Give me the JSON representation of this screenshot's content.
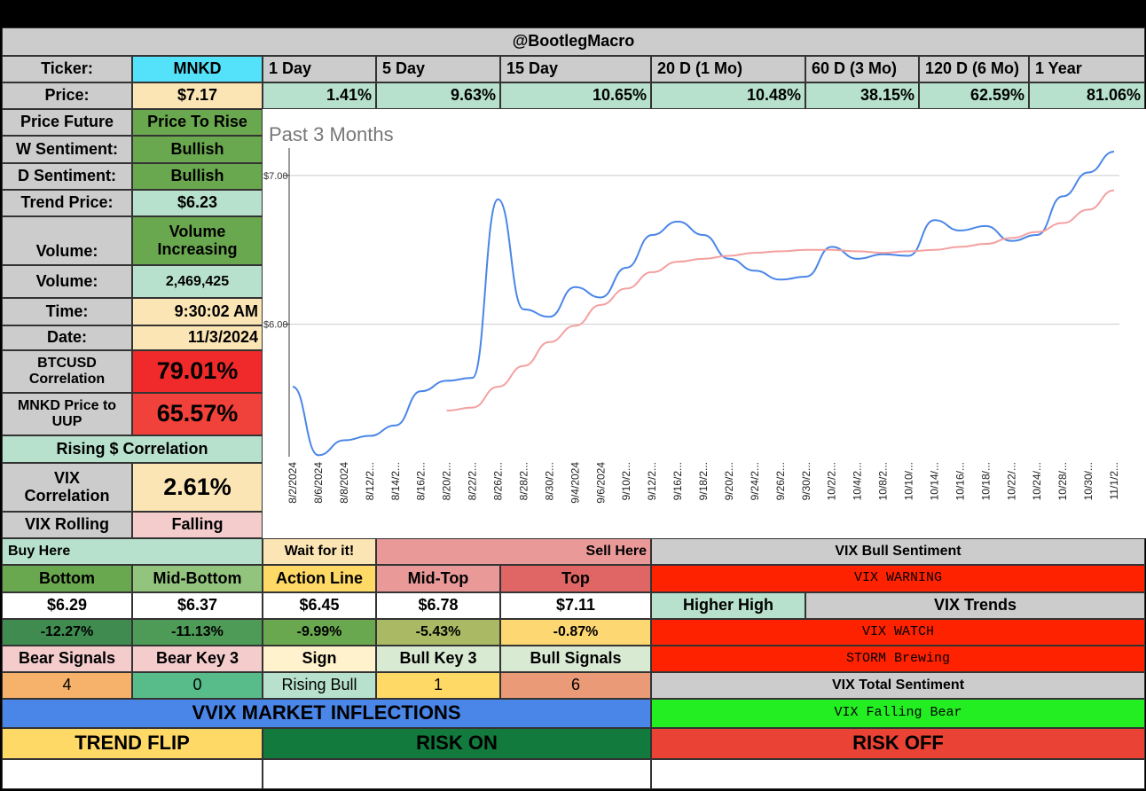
{
  "header": {
    "title": "@BootlegMacro"
  },
  "ticker": {
    "label": "Ticker:",
    "value": "MNKD"
  },
  "periods": {
    "labels": [
      "1 Day",
      "5 Day",
      "15 Day",
      "20 D (1 Mo)",
      "60 D (3 Mo)",
      "120 D (6 Mo)",
      "1 Year"
    ],
    "values": [
      "1.41%",
      "9.63%",
      "10.65%",
      "10.48%",
      "38.15%",
      "62.59%",
      "81.06%"
    ]
  },
  "price": {
    "label": "Price:",
    "value": "$7.17"
  },
  "left_panel": {
    "price_future_label": "Price Future",
    "price_future_value": "Price To Rise",
    "w_sentiment_label": "W Sentiment:",
    "w_sentiment_value": "Bullish",
    "d_sentiment_label": "D Sentiment:",
    "d_sentiment_value": "Bullish",
    "trend_price_label": "Trend Price:",
    "trend_price_value": "$6.23",
    "volume_trend_label": "Volume:",
    "volume_trend_value": "Volume Increasing",
    "volume_label": "Volume:",
    "volume_value": "2,469,425",
    "time_label": "Time:",
    "time_value": "9:30:02 AM",
    "date_label": "Date:",
    "date_value": "11/3/2024",
    "btc_corr_label": "BTCUSD Correlation",
    "btc_corr_value": "79.01%",
    "uup_corr_label": "MNKD Price to UUP",
    "uup_corr_value": "65.57%",
    "rising_corr": "Rising $ Correlation",
    "vix_corr_label": "VIX Correlation",
    "vix_corr_value": "2.61%",
    "vix_rolling_label": "VIX Rolling",
    "vix_rolling_value": "Falling"
  },
  "chart_data": {
    "type": "line",
    "title": "Past 3 Months",
    "y_tick_labels": [
      "$7.00",
      "$6.00"
    ],
    "y_ticks": [
      7,
      6
    ],
    "ylim": [
      5.11,
      7.16
    ],
    "x": [
      "8/2/2024",
      "8/6/2024",
      "8/8/2024",
      "8/12/2...",
      "8/14/2...",
      "8/16/2...",
      "8/20/2...",
      "8/22/2...",
      "8/26/2...",
      "8/28/2...",
      "8/30/2...",
      "9/4/2024",
      "9/6/2024",
      "9/10/2...",
      "9/12/2...",
      "9/16/2...",
      "9/18/2...",
      "9/20/2...",
      "9/24/2...",
      "9/26/2...",
      "9/30/2...",
      "10/2/2...",
      "10/4/2...",
      "10/8/2...",
      "10/10/...",
      "10/14/...",
      "10/16/...",
      "10/18/...",
      "10/22/...",
      "10/24/...",
      "10/28/...",
      "10/30/...",
      "11/1/2..."
    ],
    "series": [
      {
        "color": "#4a86e8",
        "values": [
          5.58,
          5.12,
          5.22,
          5.25,
          5.32,
          5.55,
          5.62,
          5.64,
          6.84,
          6.1,
          6.05,
          6.25,
          6.18,
          6.38,
          6.6,
          6.69,
          6.6,
          6.44,
          6.36,
          6.3,
          6.32,
          6.52,
          6.44,
          6.47,
          6.46,
          6.7,
          6.63,
          6.66,
          6.56,
          6.6,
          6.86,
          7.02,
          7.16
        ]
      },
      {
        "color": "#f4a0a0",
        "values": [
          null,
          null,
          null,
          null,
          null,
          null,
          5.42,
          5.44,
          5.58,
          5.72,
          5.88,
          5.99,
          6.13,
          6.24,
          6.35,
          6.42,
          6.44,
          6.46,
          6.48,
          6.49,
          6.5,
          6.5,
          6.49,
          6.48,
          6.49,
          6.5,
          6.52,
          6.54,
          6.58,
          6.62,
          6.68,
          6.77,
          6.9
        ]
      }
    ]
  },
  "levels": {
    "buy_here": "Buy Here",
    "wait": "Wait for it!",
    "sell_here": "Sell Here",
    "names": [
      "Bottom",
      "Mid-Bottom",
      "Action Line",
      "Mid-Top",
      "Top"
    ],
    "prices": [
      "$6.29",
      "$6.37",
      "$6.45",
      "$6.78",
      "$7.11"
    ],
    "pcts": [
      "-12.27%",
      "-11.13%",
      "-9.99%",
      "-5.43%",
      "-0.87%"
    ]
  },
  "signals": {
    "names": [
      "Bear Signals",
      "Bear Key 3",
      "Sign",
      "Bull Key 3",
      "Bull Signals"
    ],
    "values": [
      "4",
      "0",
      "Rising Bull",
      "1",
      "6"
    ]
  },
  "vix": {
    "bull_sentiment": "VIX Bull Sentiment",
    "warning": "VIX WARNING",
    "higher_high": "Higher High",
    "trends": "VIX Trends",
    "watch": "VIX WATCH",
    "storm": "STORM Brewing",
    "total_sentiment": "VIX Total Sentiment",
    "falling_bear": "VIX Falling Bear"
  },
  "bottom": {
    "vvix": "VVIX MARKET INFLECTIONS",
    "trend_flip": "TREND FLIP",
    "risk_on": "RISK ON",
    "risk_off": "RISK OFF"
  },
  "colors": {
    "grey": "#cccccc",
    "cyan": "#54e1fa",
    "cream": "#fce5b4",
    "light_green": "#b7e1cd",
    "green": "#6aa84f",
    "dark_green": "#3f8b50",
    "red": "#f02a2a",
    "pink": "#f4cccc",
    "salmon": "#ea9999",
    "dark_salmon": "#e06666",
    "yellow": "#ffd966",
    "blue": "#4a86e8",
    "bright_green": "#22ee22",
    "vix_red": "#ff2200"
  }
}
